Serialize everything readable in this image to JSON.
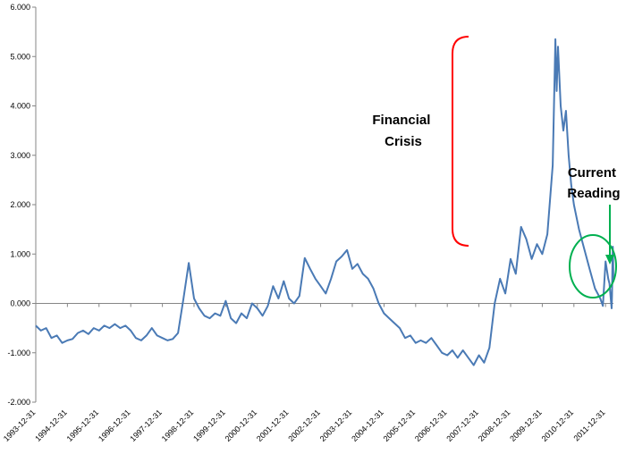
{
  "chart_data": {
    "type": "line",
    "title": "",
    "xlabel": "",
    "ylabel": "",
    "ylim": [
      -2.0,
      6.0
    ],
    "xlim": [
      "1993-12-31",
      "2012-03-31"
    ],
    "grid": false,
    "y_ticks": [
      "-2.000",
      "-1.000",
      "0.000",
      "1.000",
      "2.000",
      "3.000",
      "4.000",
      "5.000",
      "6.000"
    ],
    "y_tick_values": [
      -2,
      -1,
      0,
      1,
      2,
      3,
      4,
      5,
      6
    ],
    "x_ticks": [
      "1993-12-31",
      "1994-12-31",
      "1995-12-31",
      "1996-12-31",
      "1997-12-31",
      "1998-12-31",
      "1999-12-31",
      "2000-12-31",
      "2001-12-31",
      "2002-12-31",
      "2003-12-31",
      "2004-12-31",
      "2005-12-31",
      "2006-12-31",
      "2007-12-31",
      "2008-12-31",
      "2009-12-31",
      "2010-12-31",
      "2011-12-31"
    ],
    "series": [
      {
        "color": "#4a7ab5",
        "points": [
          [
            "1993-12-31",
            -0.45
          ],
          [
            "1994-02-28",
            -0.55
          ],
          [
            "1994-04-30",
            -0.5
          ],
          [
            "1994-06-30",
            -0.7
          ],
          [
            "1994-08-31",
            -0.65
          ],
          [
            "1994-10-31",
            -0.8
          ],
          [
            "1994-12-31",
            -0.75
          ],
          [
            "1995-02-28",
            -0.72
          ],
          [
            "1995-04-30",
            -0.6
          ],
          [
            "1995-06-30",
            -0.55
          ],
          [
            "1995-08-31",
            -0.62
          ],
          [
            "1995-10-31",
            -0.5
          ],
          [
            "1995-12-31",
            -0.55
          ],
          [
            "1996-02-29",
            -0.45
          ],
          [
            "1996-04-30",
            -0.5
          ],
          [
            "1996-06-30",
            -0.42
          ],
          [
            "1996-08-31",
            -0.5
          ],
          [
            "1996-10-31",
            -0.45
          ],
          [
            "1996-12-31",
            -0.55
          ],
          [
            "1997-02-28",
            -0.7
          ],
          [
            "1997-04-30",
            -0.75
          ],
          [
            "1997-06-30",
            -0.65
          ],
          [
            "1997-08-31",
            -0.5
          ],
          [
            "1997-10-31",
            -0.65
          ],
          [
            "1997-12-31",
            -0.7
          ],
          [
            "1998-02-28",
            -0.75
          ],
          [
            "1998-04-30",
            -0.72
          ],
          [
            "1998-06-30",
            -0.6
          ],
          [
            "1998-08-31",
            0.1
          ],
          [
            "1998-10-31",
            0.82
          ],
          [
            "1998-12-31",
            0.1
          ],
          [
            "1999-02-28",
            -0.1
          ],
          [
            "1999-04-30",
            -0.25
          ],
          [
            "1999-06-30",
            -0.3
          ],
          [
            "1999-08-31",
            -0.2
          ],
          [
            "1999-10-31",
            -0.25
          ],
          [
            "1999-12-31",
            0.05
          ],
          [
            "2000-02-29",
            -0.3
          ],
          [
            "2000-04-30",
            -0.4
          ],
          [
            "2000-06-30",
            -0.2
          ],
          [
            "2000-08-31",
            -0.3
          ],
          [
            "2000-10-31",
            0.0
          ],
          [
            "2000-12-31",
            -0.1
          ],
          [
            "2001-02-28",
            -0.25
          ],
          [
            "2001-04-30",
            -0.05
          ],
          [
            "2001-06-30",
            0.35
          ],
          [
            "2001-08-31",
            0.1
          ],
          [
            "2001-10-31",
            0.45
          ],
          [
            "2001-12-31",
            0.1
          ],
          [
            "2002-02-28",
            0.0
          ],
          [
            "2002-04-30",
            0.15
          ],
          [
            "2002-06-30",
            0.92
          ],
          [
            "2002-08-31",
            0.7
          ],
          [
            "2002-10-31",
            0.5
          ],
          [
            "2002-12-31",
            0.35
          ],
          [
            "2003-02-28",
            0.2
          ],
          [
            "2003-04-30",
            0.5
          ],
          [
            "2003-06-30",
            0.85
          ],
          [
            "2003-08-31",
            0.95
          ],
          [
            "2003-10-31",
            1.08
          ],
          [
            "2003-12-31",
            0.7
          ],
          [
            "2004-02-29",
            0.8
          ],
          [
            "2004-04-30",
            0.6
          ],
          [
            "2004-06-30",
            0.5
          ],
          [
            "2004-08-31",
            0.3
          ],
          [
            "2004-10-31",
            0.0
          ],
          [
            "2004-12-31",
            -0.2
          ],
          [
            "2005-02-28",
            -0.3
          ],
          [
            "2005-04-30",
            -0.4
          ],
          [
            "2005-06-30",
            -0.5
          ],
          [
            "2005-08-31",
            -0.7
          ],
          [
            "2005-10-31",
            -0.65
          ],
          [
            "2005-12-31",
            -0.8
          ],
          [
            "2006-02-28",
            -0.75
          ],
          [
            "2006-04-30",
            -0.8
          ],
          [
            "2006-06-30",
            -0.7
          ],
          [
            "2006-08-31",
            -0.85
          ],
          [
            "2006-10-31",
            -1.0
          ],
          [
            "2006-12-31",
            -1.05
          ],
          [
            "2007-02-28",
            -0.95
          ],
          [
            "2007-04-30",
            -1.1
          ],
          [
            "2007-06-30",
            -0.95
          ],
          [
            "2007-08-31",
            -1.1
          ],
          [
            "2007-10-31",
            -1.25
          ],
          [
            "2007-12-31",
            -1.05
          ],
          [
            "2008-02-29",
            -1.2
          ],
          [
            "2008-04-30",
            -0.9
          ],
          [
            "2008-06-30",
            0.0
          ],
          [
            "2008-08-31",
            0.5
          ],
          [
            "2008-10-31",
            0.2
          ],
          [
            "2008-12-31",
            0.9
          ],
          [
            "2009-02-28",
            0.6
          ],
          [
            "2009-04-30",
            1.55
          ],
          [
            "2009-06-30",
            1.3
          ],
          [
            "2009-08-31",
            0.9
          ],
          [
            "2009-10-31",
            1.2
          ],
          [
            "2009-12-31",
            1.0
          ],
          [
            "2010-02-28",
            1.4
          ],
          [
            "2010-04-30",
            2.8
          ],
          [
            "2010-05-31",
            5.35
          ],
          [
            "2010-06-15",
            4.3
          ],
          [
            "2010-06-30",
            5.2
          ],
          [
            "2010-07-31",
            4.0
          ],
          [
            "2010-08-31",
            3.5
          ],
          [
            "2010-09-30",
            3.9
          ],
          [
            "2010-10-31",
            3.0
          ],
          [
            "2010-11-30",
            2.4
          ],
          [
            "2010-12-31",
            2.0
          ],
          [
            "2011-02-28",
            1.5
          ],
          [
            "2011-04-30",
            1.1
          ],
          [
            "2011-06-30",
            0.7
          ],
          [
            "2011-08-31",
            0.3
          ],
          [
            "2011-10-31",
            0.1
          ],
          [
            "2011-11-30",
            -0.05
          ],
          [
            "2011-12-31",
            0.85
          ],
          [
            "2012-01-31",
            0.5
          ],
          [
            "2012-02-15",
            0.4
          ],
          [
            "2012-02-29",
            0.1
          ],
          [
            "2012-03-10",
            -0.1
          ],
          [
            "2012-03-15",
            0.15
          ],
          [
            "2012-03-20",
            0.8
          ],
          [
            "2012-03-24",
            1.15
          ],
          [
            "2012-03-28",
            0.8
          ],
          [
            "2012-03-31",
            0.45
          ]
        ]
      }
    ],
    "annotations": [
      {
        "text_lines": [
          "Financial",
          "Crisis"
        ],
        "color": "#ff0000"
      },
      {
        "text_lines": [
          "Current",
          "Reading"
        ],
        "color": "#00b050"
      }
    ]
  }
}
